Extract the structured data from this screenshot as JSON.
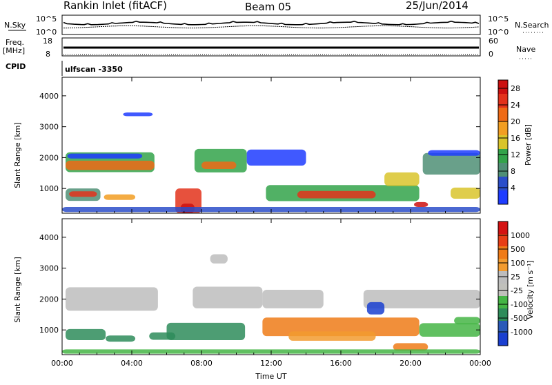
{
  "header": {
    "station": "Rankin Inlet (fitACF)",
    "beam": "Beam 05",
    "date": "25/Jun/2014"
  },
  "strip": {
    "nsky_label": "N.Sky",
    "nsky_ticks": [
      "10^5",
      "10^0"
    ],
    "nsearch_label": "N.Search",
    "freq_label": "Freq.",
    "freq_unit": "[MHz]",
    "freq_ticks": [
      "18",
      "8"
    ],
    "nave_label": "Nave",
    "nave_ticks": [
      "60",
      "0"
    ],
    "cpid_label": "CPID",
    "cpid_value": "ulfscan -3350"
  },
  "colors": {
    "power_scale": [
      "#1e3cff",
      "#2b4ec9",
      "#4f8f75",
      "#33a34a",
      "#d9c42b",
      "#f29e22",
      "#ef6a16",
      "#e3321b",
      "#cc1010"
    ],
    "velocity_scale": [
      "#1a3fd0",
      "#2a5ab8",
      "#2e8c5a",
      "#45b545",
      "#c0c0bb",
      "#bdbdbd",
      "#f29b2f",
      "#ef7b18",
      "#e83e16",
      "#d41212"
    ],
    "ground_scatter": "#a9a9a9"
  },
  "chart_data": [
    {
      "type": "heatmap",
      "name": "power",
      "ylabel": "Slant Range [km]",
      "y_ticks": [
        "1000",
        "2000",
        "3000",
        "4000"
      ],
      "ylim": [
        200,
        4600
      ],
      "x_ticks": [
        "00:00",
        "04:00",
        "08:00",
        "12:00",
        "16:00",
        "20:00",
        "00:00"
      ],
      "xlim_hours": [
        0,
        24
      ],
      "colorbar": {
        "label": "Power [dB]",
        "ticks": [
          "4",
          "8",
          "12",
          "16",
          "20",
          "24",
          "28"
        ],
        "range": [
          0,
          30
        ]
      }
    },
    {
      "type": "heatmap",
      "name": "velocity",
      "ylabel": "Slant Range [km]",
      "y_ticks": [
        "1000",
        "2000",
        "3000",
        "4000"
      ],
      "ylim": [
        200,
        4600
      ],
      "x_ticks": [
        "00:00",
        "04:00",
        "08:00",
        "12:00",
        "16:00",
        "20:00",
        "00:00"
      ],
      "xlim_hours": [
        0,
        24
      ],
      "xlabel": "Time UT",
      "colorbar": {
        "label": "Velocity [m s⁻¹]",
        "ticks": [
          "1000",
          "500",
          "100",
          "25",
          "-25",
          "-100",
          "-500",
          "-1000"
        ]
      }
    }
  ]
}
